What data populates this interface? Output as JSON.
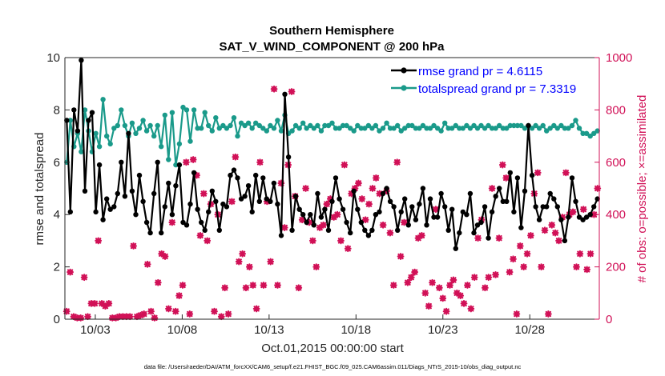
{
  "chart_data": {
    "type": "line",
    "title": "Southern Hemisphere",
    "subtitle": "SAT_V_WIND_COMPONENT @ 200 hPa",
    "xlabel": "Oct.01,2015 00:00:00 start",
    "ylabel": "rmse and totalspread",
    "ylabel_right": "# of obs: o=possible; ×=assimilated",
    "footer": "data file: /Users/raeder/DAI/ATM_forcXX/CAM6_setup/f.e21.FHIST_BGC.f09_025.CAM6assim.011/Diags_NTrS_2015-10/obs_diag_output.nc",
    "x_unit": "days since Oct.01,2015 00:00",
    "xlim": [
      0.25,
      31.0
    ],
    "ylim": [
      0,
      10
    ],
    "ylim_right": [
      0,
      1000
    ],
    "x_ticks": [
      2,
      7,
      12,
      17,
      22,
      27
    ],
    "x_tick_labels": [
      "10/03",
      "10/08",
      "10/13",
      "10/18",
      "10/23",
      "10/28"
    ],
    "y_ticks": [
      0,
      2,
      4,
      6,
      8,
      10
    ],
    "y_tick_labels": [
      "0",
      "2",
      "4",
      "6",
      "8",
      "10"
    ],
    "y2_ticks": [
      0,
      200,
      400,
      600,
      800,
      1000
    ],
    "y2_tick_labels": [
      "0",
      "200",
      "400",
      "600",
      "800",
      "1000"
    ],
    "legend_position": "top-right",
    "colors": {
      "rmse": "#000000",
      "spread": "#1a9a8a",
      "obs": "#d11157",
      "legend_text": "#0000ff",
      "right_axis": "#d11157",
      "axis": "#262626"
    },
    "series": [
      {
        "name": "rmse grand pr = 4.6115",
        "key": "rmse",
        "axis": "left",
        "values": [
          7.6,
          4.1,
          8.0,
          7.2,
          9.9,
          4.9,
          7.6,
          7.9,
          4.1,
          5.9,
          3.8,
          4.6,
          4.2,
          4.3,
          4.8,
          6.0,
          4.7,
          7.1,
          4.9,
          4.0,
          5.5,
          4.5,
          3.7,
          3.3,
          4.8,
          6.0,
          3.3,
          4.3,
          5.2,
          4.0,
          5.1,
          5.9,
          3.7,
          3.6,
          4.4,
          5.6,
          4.2,
          3.7,
          3.4,
          4.1,
          4.9,
          4.5,
          3.4,
          4.4,
          4.3,
          5.5,
          5.7,
          5.4,
          4.6,
          4.7,
          5.1,
          4.1,
          5.5,
          4.5,
          5.4,
          4.6,
          4.5,
          5.2,
          4.4,
          3.2,
          8.6,
          6.2,
          3.4,
          4.7,
          4.2,
          4.0,
          3.7,
          4.0,
          3.6,
          4.8,
          3.9,
          4.2,
          3.4,
          4.5,
          5.4,
          4.6,
          4.2,
          3.7,
          3.3,
          4.9,
          4.2,
          3.7,
          3.4,
          3.2,
          3.4,
          4.0,
          4.1,
          4.8,
          5.0,
          4.5,
          4.3,
          3.4,
          4.1,
          4.6,
          3.6,
          4.3,
          3.8,
          4.4,
          5.0,
          3.6,
          4.6,
          3.9,
          3.9,
          4.8,
          4.3,
          3.4,
          4.2,
          2.7,
          3.3,
          4.1,
          4.0,
          4.8,
          3.3,
          3.6,
          3.7,
          4.3,
          3.1,
          4.1,
          4.7,
          5.0,
          4.5,
          4.5,
          5.6,
          4.1,
          5.4,
          3.5,
          4.9,
          7.4,
          5.5,
          4.3,
          3.8,
          4.3,
          4.3,
          4.8,
          4.6,
          4.3,
          3.8,
          3.0,
          3.9,
          5.4,
          4.5,
          3.9,
          3.8,
          3.9,
          4.0,
          4.3,
          4.6
        ]
      },
      {
        "name": "totalspread grand pr = 7.3319",
        "key": "spread",
        "axis": "left",
        "values": [
          6.0,
          7.6,
          6.6,
          7.1,
          6.4,
          8.0,
          7.2,
          6.4,
          7.1,
          6.6,
          8.4,
          7.0,
          6.7,
          7.3,
          7.4,
          8.0,
          7.4,
          7.0,
          7.5,
          7.1,
          7.3,
          7.6,
          7.2,
          7.4,
          7.0,
          7.4,
          6.6,
          7.8,
          6.1,
          7.9,
          5.9,
          6.7,
          8.1,
          8.0,
          6.8,
          8.0,
          7.3,
          7.3,
          7.9,
          7.4,
          7.2,
          7.7,
          7.3,
          7.4,
          7.3,
          7.4,
          7.7,
          7.0,
          7.5,
          7.4,
          7.5,
          7.3,
          7.5,
          7.4,
          7.3,
          7.2,
          7.4,
          7.3,
          7.6,
          7.2,
          7.8,
          7.1,
          7.2,
          7.4,
          7.3,
          7.5,
          7.3,
          7.4,
          7.3,
          7.4,
          7.2,
          7.4,
          7.4,
          7.5,
          7.3,
          7.3,
          7.4,
          7.4,
          7.3,
          7.2,
          7.4,
          7.3,
          7.3,
          7.4,
          7.3,
          7.4,
          7.2,
          7.3,
          7.5,
          7.3,
          7.3,
          7.4,
          7.2,
          7.3,
          7.4,
          7.4,
          7.3,
          7.3,
          7.4,
          7.3,
          7.3,
          7.4,
          7.3,
          7.2,
          7.5,
          7.3,
          7.3,
          7.4,
          7.3,
          7.3,
          7.4,
          7.3,
          7.4,
          7.3,
          7.4,
          7.3,
          7.4,
          7.3,
          7.3,
          7.4,
          7.3,
          7.3,
          7.4,
          7.4,
          7.4,
          7.4,
          7.3,
          7.4,
          7.3,
          7.4,
          7.3,
          7.4,
          7.2,
          7.3,
          7.4,
          7.3,
          7.4,
          7.3,
          7.3,
          7.4,
          7.6,
          7.3,
          7.1,
          7.1,
          7.0,
          7.1,
          7.2
        ]
      },
      {
        "name": "obs assimilated",
        "key": "obs",
        "axis": "right",
        "values": [
          30,
          180,
          10,
          5,
          5,
          160,
          10,
          60,
          60,
          300,
          60,
          50,
          60,
          5,
          5,
          10,
          10,
          10,
          10,
          280,
          10,
          15,
          20,
          210,
          30,
          5,
          140,
          250,
          240,
          40,
          370,
          30,
          90,
          130,
          600,
          20,
          610,
          550,
          320,
          480,
          300,
          440,
          30,
          400,
          10,
          120,
          20,
          450,
          620,
          220,
          250,
          120,
          200,
          130,
          40,
          600,
          130,
          450,
          220,
          880,
          130,
          520,
          350,
          590,
          870,
          470,
          120,
          380,
          500,
          370,
          300,
          200,
          350,
          360,
          440,
          460,
          390,
          400,
          300,
          590,
          270,
          480,
          500,
          520,
          460,
          380,
          440,
          500,
          540,
          480,
          360,
          490,
          330,
          130,
          600,
          240,
          370,
          140,
          160,
          180,
          310,
          320,
          100,
          50,
          140,
          420,
          120,
          80,
          30,
          130,
          150,
          100,
          90,
          60,
          130,
          40,
          160,
          310,
          380,
          120,
          160,
          500,
          170,
          310,
          590,
          540,
          180,
          230,
          20,
          280,
          200,
          250,
          320,
          480,
          560,
          200,
          340,
          20,
          360,
          330,
          300,
          390,
          560,
          400,
          410,
          200,
          250,
          420,
          190,
          250,
          400,
          500
        ]
      }
    ]
  }
}
